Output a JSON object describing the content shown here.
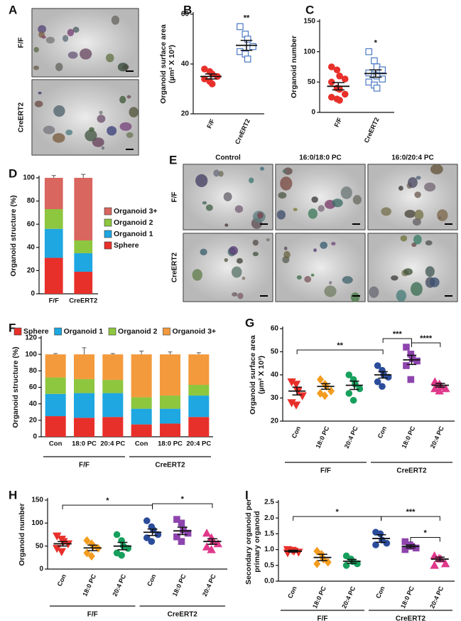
{
  "image_panels": [
    {
      "panel": "A",
      "row_labels": [
        "F/F",
        "CreERT2"
      ]
    },
    {
      "panel": "E",
      "column_labels": [
        "Control",
        "16:0/18:0 PC",
        "16:0/20:4 PC"
      ],
      "row_labels": [
        "F/F",
        "CreERT2"
      ]
    }
  ],
  "chart_data": [
    {
      "panel": "B",
      "type": "dot",
      "ylabel": [
        "Organoid surface area",
        "(µm² X 10³)"
      ],
      "categories": [
        "F/F",
        "CreERT2"
      ],
      "points": [
        [
          38,
          37,
          36,
          35,
          34,
          33,
          32
        ],
        [
          55,
          52,
          50,
          47,
          45,
          44,
          42
        ]
      ],
      "means": [
        35,
        47.5
      ],
      "sems": [
        1,
        2
      ],
      "colors": [
        "#e8302a",
        "#4a78c2"
      ],
      "markers": [
        "circle",
        "square-open"
      ],
      "ylim": [
        20,
        60
      ],
      "yticks": [
        20,
        40,
        60
      ],
      "significance": [
        {
          "category": 1,
          "text": "**"
        }
      ]
    },
    {
      "panel": "C",
      "type": "dot",
      "ylabel": [
        "Organoid number"
      ],
      "categories": [
        "F/F",
        "CreERT2"
      ],
      "points": [
        [
          75,
          70,
          60,
          55,
          50,
          40,
          38,
          30,
          25,
          22,
          20
        ],
        [
          100,
          85,
          75,
          70,
          65,
          62,
          60,
          55,
          50,
          45,
          40
        ]
      ],
      "means": [
        43,
        64
      ],
      "sems": [
        6,
        6
      ],
      "colors": [
        "#e8302a",
        "#4a78c2"
      ],
      "markers": [
        "circle",
        "square-open"
      ],
      "ylim": [
        0,
        150
      ],
      "yticks": [
        0,
        50,
        100,
        150
      ],
      "significance": [
        {
          "category": 1,
          "text": "*"
        }
      ]
    },
    {
      "panel": "D",
      "type": "stacked-bar",
      "ylabel": [
        "Organoid structure (%)"
      ],
      "categories": [
        "F/F",
        "CreERT2"
      ],
      "series": [
        {
          "name": "Sphere",
          "color": "#e8302a",
          "values": [
            31,
            19
          ],
          "errors": [
            4,
            3
          ]
        },
        {
          "name": "Organoid 1",
          "color": "#1ea7e1",
          "values": [
            25,
            16
          ],
          "errors": [
            3,
            2
          ]
        },
        {
          "name": "Organoid 2",
          "color": "#8dc63f",
          "values": [
            17,
            11
          ],
          "errors": [
            2,
            1
          ]
        },
        {
          "name": "Organoid 3+",
          "color": "#d9665f",
          "values": [
            27,
            54
          ],
          "errors": [
            2,
            3
          ]
        }
      ],
      "ylim": [
        0,
        100
      ],
      "yticks": [
        0,
        20,
        40,
        60,
        80,
        100
      ],
      "legend": "right"
    },
    {
      "panel": "F",
      "type": "stacked-bar",
      "ylabel": [
        "Organoid structure (%)"
      ],
      "categories": [
        "Con",
        "18:0 PC",
        "20:4 PC",
        "Con",
        "18:0 PC",
        "20:4 PC"
      ],
      "group_labels": [
        "F/F",
        "CreERT2"
      ],
      "series": [
        {
          "name": "Sphere",
          "color": "#e8302a",
          "values": [
            25,
            23,
            24,
            15,
            16,
            24
          ],
          "errors": [
            2,
            2,
            2,
            4,
            2,
            2
          ]
        },
        {
          "name": "Organoid 1",
          "color": "#1ea7e1",
          "values": [
            27,
            30,
            29,
            19,
            18,
            26
          ],
          "errors": [
            2,
            3,
            4,
            2,
            2,
            2
          ]
        },
        {
          "name": "Organoid 2",
          "color": "#8dc63f",
          "values": [
            20,
            17,
            16,
            14,
            16,
            13
          ],
          "errors": [
            2,
            2,
            5,
            2,
            1,
            2
          ]
        },
        {
          "name": "Organoid 3+",
          "color": "#f39a3c",
          "values": [
            28,
            30,
            31,
            52,
            50,
            37
          ],
          "errors": [
            1,
            8,
            1,
            4,
            3,
            2
          ]
        }
      ],
      "ylim": [
        0,
        120
      ],
      "yticks": [
        0,
        20,
        40,
        60,
        80,
        100,
        120
      ],
      "legend": "top"
    },
    {
      "panel": "G",
      "type": "dot",
      "ylabel": [
        "Organoid surface area",
        "(µm² X 10³)"
      ],
      "categories": [
        "Con",
        "18:0 PC",
        "20:4 PC",
        "Con",
        "18:0 PC",
        "20:4 PC"
      ],
      "group_labels": [
        "F/F",
        "CreERT2"
      ],
      "points": [
        [
          37,
          36,
          33,
          31,
          28,
          27
        ],
        [
          38,
          36,
          35,
          33,
          32,
          31
        ],
        [
          40,
          38,
          36,
          34,
          32,
          29
        ],
        [
          44,
          42,
          40,
          39,
          37,
          35
        ],
        [
          52,
          49,
          47,
          46,
          44,
          38
        ],
        [
          37,
          36,
          35,
          34,
          34,
          33
        ]
      ],
      "means": [
        33,
        35,
        35.5,
        40,
        46.5,
        35.5
      ],
      "sems": [
        1.7,
        1.2,
        1.8,
        1.4,
        2,
        0.8
      ],
      "colors": [
        "#e8302a",
        "#f39c1f",
        "#17a05d",
        "#2b4c9a",
        "#8e44ad",
        "#e0388b"
      ],
      "markers": [
        "triangle-down",
        "diamond",
        "circle",
        "circle",
        "square",
        "triangle-up"
      ],
      "ylim": [
        20,
        60
      ],
      "yticks": [
        20,
        30,
        40,
        50,
        60
      ],
      "brackets": [
        {
          "from": 0,
          "to": 3,
          "text": "**"
        },
        {
          "from": 3,
          "to": 4,
          "text": "***"
        },
        {
          "from": 4,
          "to": 5,
          "text": "****"
        }
      ]
    },
    {
      "panel": "H",
      "type": "dot",
      "ylabel": [
        "Organoid number"
      ],
      "categories": [
        "Con",
        "18:0 PC",
        "20:4 PC",
        "Con",
        "18:0 PC",
        "20:4 PC"
      ],
      "group_labels": [
        "F/F",
        "CreERT2"
      ],
      "points": [
        [
          72,
          65,
          60,
          55,
          45,
          38
        ],
        [
          62,
          55,
          50,
          45,
          35,
          28
        ],
        [
          75,
          62,
          50,
          45,
          35,
          30
        ],
        [
          105,
          92,
          85,
          75,
          68,
          60
        ],
        [
          108,
          100,
          85,
          78,
          70,
          60
        ],
        [
          78,
          68,
          60,
          55,
          48,
          42
        ]
      ],
      "means": [
        55,
        46,
        50,
        80,
        83,
        60
      ],
      "sems": [
        5,
        6,
        8,
        7,
        8,
        6
      ],
      "colors": [
        "#e8302a",
        "#f39c1f",
        "#17a05d",
        "#2b4c9a",
        "#8e44ad",
        "#e0388b"
      ],
      "markers": [
        "triangle-down",
        "diamond",
        "circle",
        "circle",
        "square",
        "triangle-up"
      ],
      "ylim": [
        0,
        150
      ],
      "yticks": [
        0,
        50,
        100,
        150
      ],
      "brackets": [
        {
          "from": 0,
          "to": 3,
          "text": "*"
        },
        {
          "from": 3,
          "to": 5,
          "text": "*"
        }
      ]
    },
    {
      "panel": "I",
      "type": "dot",
      "ylabel": [
        "Secondary organoid per",
        "primary organoid"
      ],
      "categories": [
        "Con",
        "18:0 PC",
        "20:4 PC",
        "Con",
        "18:0 PC",
        "20:4 PC"
      ],
      "group_labels": [
        "F/F",
        "CreERT2"
      ],
      "points": [
        [
          1.0,
          0.98,
          0.95,
          0.92,
          0.9
        ],
        [
          0.95,
          0.85,
          0.7,
          0.6,
          0.55
        ],
        [
          0.8,
          0.7,
          0.62,
          0.55,
          0.5
        ],
        [
          1.55,
          1.5,
          1.3,
          1.2,
          1.15
        ],
        [
          1.25,
          1.15,
          1.1,
          1.05,
          1.0
        ],
        [
          0.8,
          0.72,
          0.7,
          0.55,
          0.5
        ]
      ],
      "means": [
        0.95,
        0.75,
        0.63,
        1.35,
        1.1,
        0.7
      ],
      "sems": [
        0.03,
        0.1,
        0.06,
        0.12,
        0.05,
        0.06
      ],
      "colors": [
        "#e8302a",
        "#f39c1f",
        "#17a05d",
        "#2b4c9a",
        "#8e44ad",
        "#e0388b"
      ],
      "markers": [
        "triangle-down",
        "diamond",
        "circle",
        "circle",
        "square",
        "triangle-up"
      ],
      "ylim": [
        0,
        2.5
      ],
      "yticks": [
        {
          "value": 0,
          "label": "0.0"
        },
        0.5,
        {
          "value": 1,
          "label": "1.0"
        },
        1.5,
        {
          "value": 2,
          "label": "2.0"
        },
        2.5
      ],
      "brackets": [
        {
          "from": 0,
          "to": 3,
          "text": "*"
        },
        {
          "from": 3,
          "to": 5,
          "text": "***"
        },
        {
          "from": 4,
          "to": 5,
          "text": "*"
        }
      ]
    }
  ]
}
